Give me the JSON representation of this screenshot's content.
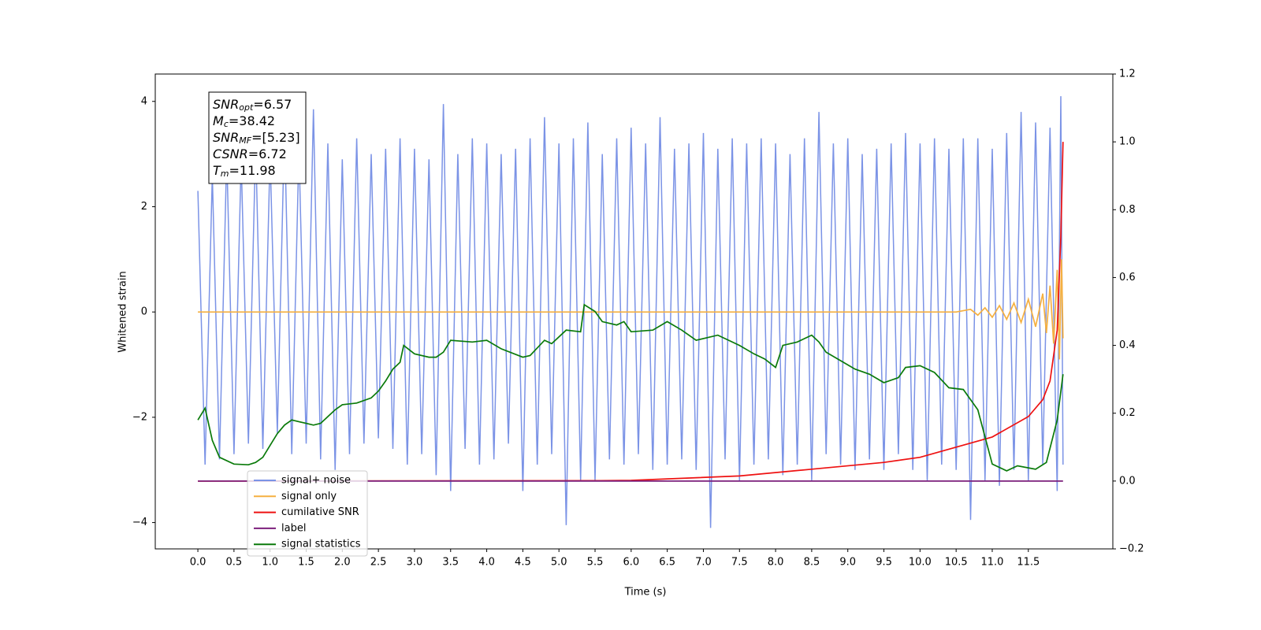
{
  "chart_data": {
    "type": "line",
    "xlabel": "Time (s)",
    "ylabel": "Whitened strain",
    "xlim": [
      -0.59,
      12.67
    ],
    "ylim": [
      -4.5,
      4.52
    ],
    "y2lim": [
      -0.2,
      1.2
    ],
    "xticks": [
      {
        "value": 0,
        "label": "0.0"
      },
      0.5,
      {
        "value": 1,
        "label": "1.0"
      },
      1.5,
      {
        "value": 2,
        "label": "2.0"
      },
      2.5,
      {
        "value": 3,
        "label": "3.0"
      },
      3.5,
      {
        "value": 4,
        "label": "4.0"
      },
      4.5,
      {
        "value": 5,
        "label": "5.0"
      },
      5.5,
      {
        "value": 6,
        "label": "6.0"
      },
      6.5,
      {
        "value": 7,
        "label": "7.0"
      },
      7.5,
      {
        "value": 8,
        "label": "8.0"
      },
      8.5,
      {
        "value": 9,
        "label": "9.0"
      },
      9.5,
      {
        "value": 10,
        "label": "10.0"
      },
      10.5,
      {
        "value": 11,
        "label": "11.0"
      },
      11.5
    ],
    "yticks": [
      {
        "value": -4,
        "label": "−4"
      },
      {
        "value": -2,
        "label": "−2"
      },
      0,
      2,
      4
    ],
    "y2ticks": [
      {
        "value": -0.2,
        "label": "−0.2"
      },
      {
        "value": 0,
        "label": "0.0"
      },
      0.2,
      0.4,
      0.6,
      0.8,
      {
        "value": 1,
        "label": "1.0"
      },
      1.2
    ],
    "legend": "lower left",
    "annotations": [
      {
        "base": "SNR",
        "sub": "opt",
        "text": "=6.57"
      },
      {
        "base": "M",
        "sub": "c",
        "text": "=38.42"
      },
      {
        "base": "SNR",
        "sub": "MF",
        "text": "=[5.23]"
      },
      {
        "base": "CSNR",
        "sub": null,
        "text": "=6.72"
      },
      {
        "base": "T",
        "sub": "m",
        "text": "=11.98"
      }
    ],
    "series": [
      {
        "name": "signal+ noise",
        "color": "#7b93e6",
        "axis": "y",
        "x": [
          0,
          0.1,
          0.2,
          0.3,
          0.4,
          0.5,
          0.6,
          0.7,
          0.8,
          0.9,
          1,
          1.1,
          1.2,
          1.3,
          1.4,
          1.5,
          1.6,
          1.7,
          1.8,
          1.9,
          2,
          2.1,
          2.2,
          2.3,
          2.4,
          2.5,
          2.6,
          2.7,
          2.8,
          2.9,
          3,
          3.1,
          3.2,
          3.3,
          3.4,
          3.5,
          3.6,
          3.7,
          3.8,
          3.9,
          4,
          4.1,
          4.2,
          4.3,
          4.4,
          4.5,
          4.6,
          4.7,
          4.8,
          4.9,
          5,
          5.1,
          5.2,
          5.3,
          5.4,
          5.5,
          5.6,
          5.7,
          5.8,
          5.9,
          6,
          6.1,
          6.2,
          6.3,
          6.4,
          6.5,
          6.6,
          6.7,
          6.8,
          6.9,
          7,
          7.1,
          7.2,
          7.3,
          7.4,
          7.5,
          7.6,
          7.7,
          7.8,
          7.9,
          8,
          8.1,
          8.2,
          8.3,
          8.4,
          8.5,
          8.6,
          8.7,
          8.8,
          8.9,
          9,
          9.1,
          9.2,
          9.3,
          9.4,
          9.5,
          9.6,
          9.7,
          9.8,
          9.9,
          10,
          10.1,
          10.2,
          10.3,
          10.4,
          10.5,
          10.6,
          10.7,
          10.8,
          10.9,
          11,
          11.1,
          11.2,
          11.3,
          11.4,
          11.5,
          11.6,
          11.7,
          11.8,
          11.9,
          11.95,
          11.98
        ],
        "values": [
          2.3,
          -2.9,
          2.6,
          -2.8,
          3.0,
          -2.7,
          2.9,
          -2.5,
          3.2,
          -2.6,
          3.0,
          -2.3,
          3.5,
          -2.7,
          3.1,
          -2.5,
          3.85,
          -2.8,
          3.2,
          -3.0,
          2.9,
          -2.7,
          3.3,
          -2.5,
          3.0,
          -2.4,
          3.1,
          -2.6,
          3.3,
          -2.9,
          3.1,
          -2.7,
          2.9,
          -3.1,
          3.95,
          -3.4,
          3.0,
          -2.6,
          3.3,
          -2.9,
          3.2,
          -2.8,
          3.0,
          -2.5,
          3.1,
          -3.4,
          3.3,
          -2.9,
          3.7,
          -2.7,
          3.2,
          -4.05,
          3.3,
          -3.2,
          3.6,
          -3.2,
          3.0,
          -2.8,
          3.3,
          -2.9,
          3.5,
          -2.7,
          3.2,
          -3.0,
          3.7,
          -2.9,
          3.1,
          -2.8,
          3.2,
          -3.0,
          3.4,
          -4.1,
          3.1,
          -2.8,
          3.3,
          -3.2,
          3.2,
          -2.9,
          3.3,
          -2.8,
          3.2,
          -3.1,
          3.0,
          -2.9,
          3.3,
          -3.2,
          3.8,
          -2.7,
          3.2,
          -2.9,
          3.3,
          -3.0,
          3.0,
          -2.8,
          3.1,
          -3.0,
          3.2,
          -2.7,
          3.4,
          -3.0,
          3.2,
          -3.2,
          3.3,
          -2.9,
          3.1,
          -3.0,
          3.3,
          -3.95,
          3.3,
          -3.2,
          3.1,
          -3.3,
          3.4,
          -3.0,
          3.8,
          -3.2,
          3.6,
          -2.9,
          3.5,
          -3.4,
          4.1,
          -2.9
        ]
      },
      {
        "name": "signal only",
        "color": "#f5b041",
        "axis": "y",
        "x": [
          0,
          10.5,
          10.7,
          10.8,
          10.9,
          11.0,
          11.1,
          11.2,
          11.3,
          11.4,
          11.5,
          11.6,
          11.7,
          11.75,
          11.8,
          11.85,
          11.9,
          11.93,
          11.96,
          11.98
        ],
        "values": [
          0,
          0,
          0.05,
          -0.06,
          0.08,
          -0.1,
          0.12,
          -0.14,
          0.17,
          -0.2,
          0.24,
          -0.28,
          0.35,
          -0.4,
          0.5,
          -0.6,
          0.8,
          -0.9,
          1.0,
          -0.5
        ]
      },
      {
        "name": "cumilative SNR",
        "color": "#ee1111",
        "axis": "y2",
        "x": [
          0,
          5.5,
          6.0,
          7.5,
          8.5,
          9.5,
          10.0,
          10.5,
          11.0,
          11.5,
          11.7,
          11.8,
          11.9,
          11.95,
          11.98
        ],
        "values": [
          0,
          0.001,
          0.002,
          0.015,
          0.035,
          0.055,
          0.07,
          0.1,
          0.13,
          0.19,
          0.24,
          0.295,
          0.445,
          0.72,
          1.0
        ]
      },
      {
        "name": "label",
        "color": "#7b1f7b",
        "axis": "y2",
        "x": [
          0,
          11.98
        ],
        "values": [
          0,
          0
        ]
      },
      {
        "name": "signal statistics",
        "color": "#0a7a0a",
        "axis": "y2",
        "x": [
          0,
          0.1,
          0.2,
          0.3,
          0.5,
          0.7,
          0.8,
          0.9,
          1.0,
          1.1,
          1.2,
          1.3,
          1.5,
          1.6,
          1.7,
          1.8,
          1.9,
          2.0,
          2.2,
          2.4,
          2.5,
          2.6,
          2.7,
          2.8,
          2.85,
          3.0,
          3.2,
          3.3,
          3.4,
          3.5,
          3.8,
          4.0,
          4.2,
          4.5,
          4.6,
          4.8,
          4.9,
          5.1,
          5.3,
          5.35,
          5.5,
          5.6,
          5.8,
          5.9,
          6.0,
          6.3,
          6.5,
          6.7,
          6.9,
          7.2,
          7.5,
          7.7,
          7.85,
          8.0,
          8.1,
          8.3,
          8.5,
          8.6,
          8.7,
          8.9,
          9.1,
          9.3,
          9.5,
          9.7,
          9.8,
          10.0,
          10.2,
          10.4,
          10.6,
          10.8,
          11.0,
          11.2,
          11.35,
          11.6,
          11.75,
          11.9,
          11.98
        ],
        "values": [
          0.18,
          0.215,
          0.12,
          0.07,
          0.05,
          0.048,
          0.055,
          0.07,
          0.105,
          0.14,
          0.165,
          0.18,
          0.17,
          0.165,
          0.17,
          0.19,
          0.21,
          0.225,
          0.23,
          0.245,
          0.265,
          0.295,
          0.33,
          0.35,
          0.4,
          0.375,
          0.365,
          0.365,
          0.38,
          0.415,
          0.41,
          0.415,
          0.39,
          0.365,
          0.37,
          0.415,
          0.405,
          0.445,
          0.44,
          0.52,
          0.5,
          0.47,
          0.46,
          0.47,
          0.44,
          0.445,
          0.47,
          0.445,
          0.415,
          0.43,
          0.4,
          0.375,
          0.36,
          0.335,
          0.4,
          0.41,
          0.43,
          0.41,
          0.38,
          0.355,
          0.33,
          0.315,
          0.29,
          0.305,
          0.335,
          0.34,
          0.32,
          0.275,
          0.27,
          0.21,
          0.05,
          0.03,
          0.045,
          0.035,
          0.055,
          0.18,
          0.315
        ]
      }
    ]
  }
}
